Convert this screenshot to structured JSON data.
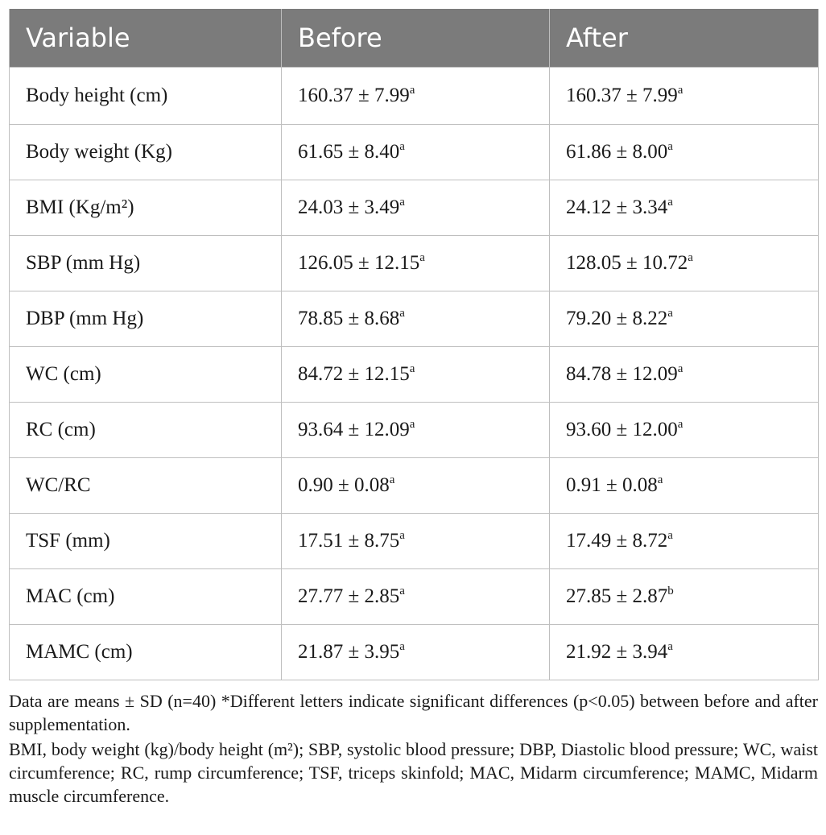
{
  "table": {
    "headers": [
      "Variable",
      "Before",
      "After"
    ],
    "rows": [
      {
        "variable": "Body height (cm)",
        "before": "160.37 ± 7.99",
        "before_sup": "a",
        "after": "160.37 ± 7.99",
        "after_sup": "a"
      },
      {
        "variable": "Body weight (Kg)",
        "before": "61.65 ± 8.40",
        "before_sup": "a",
        "after": "61.86 ± 8.00",
        "after_sup": "a"
      },
      {
        "variable": "BMI (Kg/m²)",
        "before": "24.03 ± 3.49",
        "before_sup": "a",
        "after": "24.12 ± 3.34",
        "after_sup": "a"
      },
      {
        "variable": "SBP (mm Hg)",
        "before": "126.05 ± 12.15",
        "before_sup": "a",
        "after": "128.05 ± 10.72",
        "after_sup": "a"
      },
      {
        "variable": "DBP (mm Hg)",
        "before": "78.85 ± 8.68",
        "before_sup": "a",
        "after": "79.20 ± 8.22",
        "after_sup": "a"
      },
      {
        "variable": "WC (cm)",
        "before": "84.72 ± 12.15",
        "before_sup": "a",
        "after": "84.78 ± 12.09",
        "after_sup": "a"
      },
      {
        "variable": "RC (cm)",
        "before": "93.64 ± 12.09",
        "before_sup": "a",
        "after": "93.60 ± 12.00",
        "after_sup": "a"
      },
      {
        "variable": "WC/RC",
        "before": "0.90 ± 0.08",
        "before_sup": "a",
        "after": "0.91 ± 0.08",
        "after_sup": "a"
      },
      {
        "variable": "TSF (mm)",
        "before": "17.51 ± 8.75",
        "before_sup": "a",
        "after": "17.49 ± 8.72",
        "after_sup": "a"
      },
      {
        "variable": "MAC (cm)",
        "before": "27.77 ± 2.85",
        "before_sup": "a",
        "after": "27.85 ± 2.87",
        "after_sup": "b"
      },
      {
        "variable": "MAMC (cm)",
        "before": "21.87 ± 3.95",
        "before_sup": "a",
        "after": "21.92 ± 3.94",
        "after_sup": "a"
      }
    ]
  },
  "notes": {
    "note1": "Data are means ± SD (n=40) *Different letters indicate significant differences (p<0.05) between before and after supplementation.",
    "note2": "BMI, body weight (kg)/body height (m²); SBP, systolic blood pressure; DBP, Diastolic blood pressure; WC, waist circumference; RC, rump circumference; TSF, triceps skinfold; MAC, Midarm circumference; MAMC, Midarm muscle circumference."
  },
  "colors": {
    "header_bg": "#7b7b7b",
    "header_text": "#ffffff",
    "grid": "#bfbfbf"
  }
}
